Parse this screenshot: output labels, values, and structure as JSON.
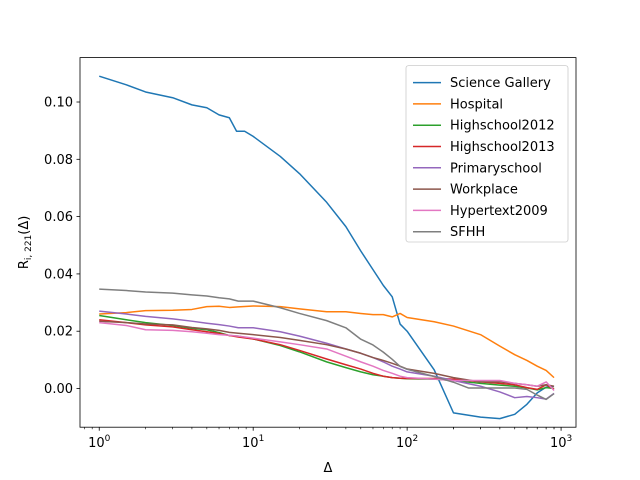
{
  "chart_data": {
    "type": "line",
    "xlabel": "Δ",
    "ylabel_main": "R",
    "ylabel_sub": "i, 221",
    "ylabel_tail": "(Δ)",
    "xscale": "log",
    "xlim": [
      0.75,
      1250
    ],
    "ylim": [
      -0.0135,
      0.1155
    ],
    "x_ticks": [
      {
        "value": 1,
        "base": "10",
        "exp": "0"
      },
      {
        "value": 10,
        "base": "10",
        "exp": "1"
      },
      {
        "value": 100,
        "base": "10",
        "exp": "2"
      },
      {
        "value": 1000,
        "base": "10",
        "exp": "3"
      }
    ],
    "y_ticks": [
      {
        "value": 0.0,
        "label": "0.00"
      },
      {
        "value": 0.02,
        "label": "0.02"
      },
      {
        "value": 0.04,
        "label": "0.04"
      },
      {
        "value": 0.06,
        "label": "0.06"
      },
      {
        "value": 0.08,
        "label": "0.08"
      },
      {
        "value": 0.1,
        "label": "0.10"
      }
    ],
    "grid": false,
    "legend_position": "top-right",
    "series": [
      {
        "name": "Science Gallery",
        "color": "#1f77b4",
        "points": [
          [
            1,
            0.109
          ],
          [
            1.5,
            0.106
          ],
          [
            2,
            0.1035
          ],
          [
            3,
            0.1015
          ],
          [
            4,
            0.099
          ],
          [
            5,
            0.098
          ],
          [
            6,
            0.0955
          ],
          [
            7,
            0.0945
          ],
          [
            7.8,
            0.0898
          ],
          [
            8.8,
            0.0898
          ],
          [
            10,
            0.088
          ],
          [
            15,
            0.081
          ],
          [
            20,
            0.075
          ],
          [
            30,
            0.065
          ],
          [
            40,
            0.0565
          ],
          [
            50,
            0.048
          ],
          [
            60,
            0.0415
          ],
          [
            70,
            0.036
          ],
          [
            80,
            0.032
          ],
          [
            90,
            0.0225
          ],
          [
            100,
            0.02
          ],
          [
            150,
            0.0065
          ],
          [
            200,
            -0.0085
          ],
          [
            300,
            -0.01
          ],
          [
            400,
            -0.0105
          ],
          [
            500,
            -0.009
          ],
          [
            600,
            -0.0055
          ],
          [
            700,
            -0.0015
          ],
          [
            800,
            0.0005
          ],
          [
            900,
            0.0008
          ]
        ]
      },
      {
        "name": "Hospital",
        "color": "#ff7f0e",
        "points": [
          [
            1,
            0.026
          ],
          [
            1.5,
            0.0265
          ],
          [
            2,
            0.0272
          ],
          [
            3,
            0.0273
          ],
          [
            4,
            0.0276
          ],
          [
            5,
            0.0286
          ],
          [
            6,
            0.0287
          ],
          [
            7,
            0.0283
          ],
          [
            8,
            0.0285
          ],
          [
            10,
            0.0288
          ],
          [
            15,
            0.0286
          ],
          [
            20,
            0.0278
          ],
          [
            30,
            0.0268
          ],
          [
            40,
            0.0268
          ],
          [
            50,
            0.0262
          ],
          [
            60,
            0.0258
          ],
          [
            70,
            0.0258
          ],
          [
            80,
            0.025
          ],
          [
            90,
            0.0262
          ],
          [
            100,
            0.0248
          ],
          [
            150,
            0.0233
          ],
          [
            200,
            0.0218
          ],
          [
            300,
            0.0188
          ],
          [
            400,
            0.0148
          ],
          [
            500,
            0.0118
          ],
          [
            600,
            0.0098
          ],
          [
            700,
            0.0078
          ],
          [
            800,
            0.0063
          ],
          [
            900,
            0.0038
          ]
        ]
      },
      {
        "name": "Highschool2012",
        "color": "#2ca02c",
        "points": [
          [
            1,
            0.0255
          ],
          [
            1.5,
            0.024
          ],
          [
            2,
            0.023
          ],
          [
            3,
            0.022
          ],
          [
            4,
            0.021
          ],
          [
            5,
            0.0205
          ],
          [
            6,
            0.0195
          ],
          [
            7,
            0.0185
          ],
          [
            8,
            0.0183
          ],
          [
            10,
            0.0173
          ],
          [
            15,
            0.015
          ],
          [
            20,
            0.0128
          ],
          [
            30,
            0.0093
          ],
          [
            40,
            0.0073
          ],
          [
            50,
            0.0058
          ],
          [
            60,
            0.0048
          ],
          [
            70,
            0.0043
          ],
          [
            80,
            0.0038
          ],
          [
            90,
            0.0036
          ],
          [
            100,
            0.0034
          ],
          [
            150,
            0.0033
          ],
          [
            200,
            0.0028
          ],
          [
            300,
            0.0018
          ],
          [
            400,
            0.0012
          ],
          [
            500,
            0.0008
          ],
          [
            600,
            0.0002
          ],
          [
            700,
            -0.0005
          ],
          [
            800,
            0.0003
          ],
          [
            900,
            0.0
          ]
        ]
      },
      {
        "name": "Highschool2013",
        "color": "#d62728",
        "points": [
          [
            1,
            0.024
          ],
          [
            1.5,
            0.023
          ],
          [
            2,
            0.0222
          ],
          [
            3,
            0.0215
          ],
          [
            4,
            0.0205
          ],
          [
            5,
            0.0198
          ],
          [
            6,
            0.0192
          ],
          [
            7,
            0.0185
          ],
          [
            8,
            0.018
          ],
          [
            10,
            0.0173
          ],
          [
            15,
            0.0153
          ],
          [
            20,
            0.0133
          ],
          [
            30,
            0.0103
          ],
          [
            40,
            0.0083
          ],
          [
            50,
            0.0068
          ],
          [
            60,
            0.0053
          ],
          [
            70,
            0.0043
          ],
          [
            80,
            0.0038
          ],
          [
            90,
            0.0036
          ],
          [
            100,
            0.0035
          ],
          [
            150,
            0.0035
          ],
          [
            200,
            0.0033
          ],
          [
            300,
            0.0023
          ],
          [
            400,
            0.0018
          ],
          [
            500,
            0.0013
          ],
          [
            600,
            0.0003
          ],
          [
            700,
            -0.0003
          ],
          [
            800,
            0.0013
          ],
          [
            900,
            -0.0002
          ]
        ]
      },
      {
        "name": "Primaryschool",
        "color": "#9467bd",
        "points": [
          [
            1,
            0.027
          ],
          [
            1.5,
            0.026
          ],
          [
            2,
            0.0252
          ],
          [
            3,
            0.0243
          ],
          [
            4,
            0.0235
          ],
          [
            5,
            0.0228
          ],
          [
            6,
            0.0223
          ],
          [
            7,
            0.0218
          ],
          [
            8,
            0.0212
          ],
          [
            10,
            0.0212
          ],
          [
            15,
            0.0198
          ],
          [
            20,
            0.0183
          ],
          [
            30,
            0.0158
          ],
          [
            40,
            0.0138
          ],
          [
            50,
            0.0123
          ],
          [
            60,
            0.0108
          ],
          [
            70,
            0.0093
          ],
          [
            80,
            0.0078
          ],
          [
            90,
            0.0068
          ],
          [
            100,
            0.0058
          ],
          [
            150,
            0.0043
          ],
          [
            200,
            0.0028
          ],
          [
            300,
            0.0008
          ],
          [
            400,
            -0.0012
          ],
          [
            500,
            -0.0032
          ],
          [
            600,
            -0.0028
          ],
          [
            700,
            -0.0032
          ],
          [
            800,
            -0.0037
          ],
          [
            900,
            -0.0017
          ]
        ]
      },
      {
        "name": "Workplace",
        "color": "#8c564b",
        "points": [
          [
            1,
            0.0235
          ],
          [
            1.5,
            0.023
          ],
          [
            2,
            0.0225
          ],
          [
            3,
            0.0222
          ],
          [
            4,
            0.0213
          ],
          [
            5,
            0.0208
          ],
          [
            6,
            0.0203
          ],
          [
            7,
            0.0196
          ],
          [
            8,
            0.0193
          ],
          [
            10,
            0.0188
          ],
          [
            15,
            0.0178
          ],
          [
            20,
            0.0168
          ],
          [
            30,
            0.0153
          ],
          [
            40,
            0.0138
          ],
          [
            50,
            0.0123
          ],
          [
            60,
            0.0108
          ],
          [
            70,
            0.0098
          ],
          [
            80,
            0.0088
          ],
          [
            90,
            0.0078
          ],
          [
            100,
            0.0068
          ],
          [
            150,
            0.0053
          ],
          [
            200,
            0.0038
          ],
          [
            300,
            0.0023
          ],
          [
            400,
            0.0023
          ],
          [
            500,
            0.0018
          ],
          [
            600,
            0.0013
          ],
          [
            700,
            0.0008
          ],
          [
            800,
            0.0013
          ],
          [
            900,
            0.0008
          ]
        ]
      },
      {
        "name": "Hypertext2009",
        "color": "#e377c2",
        "points": [
          [
            1,
            0.023
          ],
          [
            1.5,
            0.022
          ],
          [
            2,
            0.0205
          ],
          [
            3,
            0.0203
          ],
          [
            4,
            0.0198
          ],
          [
            5,
            0.0193
          ],
          [
            6,
            0.0188
          ],
          [
            7,
            0.0186
          ],
          [
            8,
            0.0183
          ],
          [
            10,
            0.0176
          ],
          [
            15,
            0.0163
          ],
          [
            20,
            0.0153
          ],
          [
            30,
            0.0138
          ],
          [
            40,
            0.0113
          ],
          [
            50,
            0.0093
          ],
          [
            60,
            0.0078
          ],
          [
            70,
            0.0063
          ],
          [
            80,
            0.0053
          ],
          [
            90,
            0.0043
          ],
          [
            100,
            0.0038
          ],
          [
            150,
            0.0033
          ],
          [
            200,
            0.0028
          ],
          [
            300,
            0.0028
          ],
          [
            400,
            0.0028
          ],
          [
            500,
            0.0018
          ],
          [
            600,
            0.0013
          ],
          [
            700,
            0.0008
          ],
          [
            800,
            0.0023
          ],
          [
            900,
            -0.0007
          ]
        ]
      },
      {
        "name": "SFHH",
        "color": "#7f7f7f",
        "points": [
          [
            1,
            0.0347
          ],
          [
            1.5,
            0.0342
          ],
          [
            2,
            0.0337
          ],
          [
            3,
            0.0333
          ],
          [
            4,
            0.0327
          ],
          [
            5,
            0.0323
          ],
          [
            6,
            0.0317
          ],
          [
            7,
            0.0313
          ],
          [
            8,
            0.0305
          ],
          [
            10,
            0.0305
          ],
          [
            15,
            0.0282
          ],
          [
            20,
            0.0262
          ],
          [
            30,
            0.0237
          ],
          [
            40,
            0.0212
          ],
          [
            50,
            0.0172
          ],
          [
            60,
            0.0152
          ],
          [
            70,
            0.0127
          ],
          [
            80,
            0.0102
          ],
          [
            90,
            0.0077
          ],
          [
            100,
            0.0067
          ],
          [
            150,
            0.0042
          ],
          [
            200,
            0.0022
          ],
          [
            250,
            0.0002
          ],
          [
            300,
            0.0002
          ],
          [
            400,
            0.0002
          ],
          [
            500,
            0.0002
          ],
          [
            600,
            -0.0003
          ],
          [
            700,
            -0.0023
          ],
          [
            800,
            -0.0038
          ],
          [
            900,
            -0.0018
          ]
        ]
      }
    ]
  }
}
